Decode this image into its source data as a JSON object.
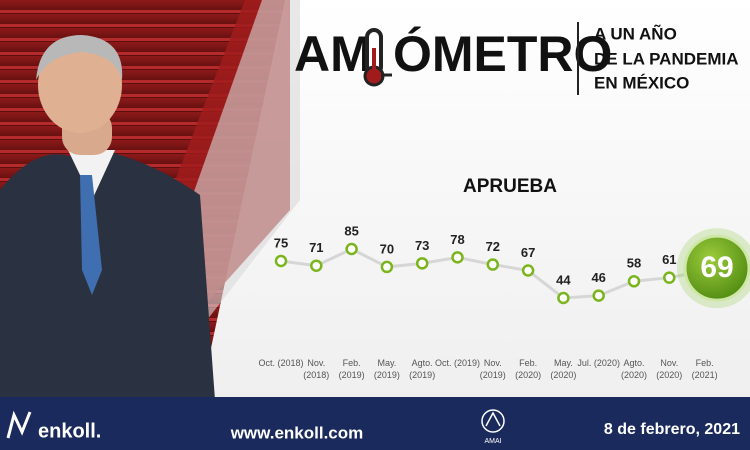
{
  "header": {
    "title_left": "AM",
    "title_right": "ÓMETRO",
    "subtitle": [
      "A UN AÑO",
      "DE LA PANDEMIA",
      "EN MÉXICO"
    ]
  },
  "chart_data": {
    "type": "line",
    "title": "APRUEBA",
    "categories": [
      "Oct. (2018)",
      "Nov. (2018)",
      "Feb. (2019)",
      "May. (2019)",
      "Agto. (2019)",
      "Oct. (2019)",
      "Nov. (2019)",
      "Feb. (2020)",
      "May. (2020)",
      "Jul. (2020)",
      "Agto. (2020)",
      "Nov. (2020)",
      "Feb. (2021)"
    ],
    "values": [
      75,
      71,
      85,
      70,
      73,
      78,
      72,
      67,
      44,
      46,
      58,
      61,
      69
    ],
    "line_color": "#d6d6d6",
    "marker_color": "#7ab51d"
  },
  "footer": {
    "brand": "enkoll.",
    "url": "www.enkoll.com",
    "logo": "AMAI",
    "date": "8 de febrero, 2021"
  }
}
